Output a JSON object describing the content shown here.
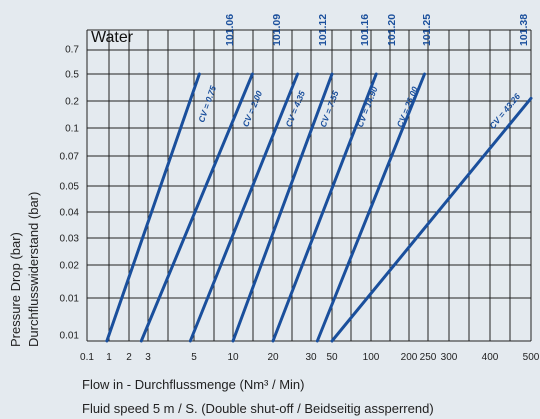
{
  "chart_data": {
    "type": "line",
    "title": "Water",
    "xlabel": "Flow in - Durchflussmenge (Nm³ / Min)",
    "ylabel": "Pressure Drop (bar)",
    "ylabel2": "Durchflusswiderstand (bar)",
    "footnote": "Fluid speed 5 m / S. (Double shut-off / Beidseitig assperrend)",
    "x_scale": "log",
    "y_scale": "log",
    "xlim": [
      0.1,
      500
    ],
    "ylim": [
      0.01,
      0.7
    ],
    "x_ticks": [
      "0.1",
      "1",
      "2",
      "3",
      "5",
      "10",
      "20",
      "30",
      "50",
      "100",
      "200",
      "250",
      "300",
      "400",
      "500"
    ],
    "y_ticks": [
      "0.7",
      "0.5",
      "0.2",
      "0.1",
      "0.07",
      "0.05",
      "0.04",
      "0.03",
      "0.02",
      "0.01",
      "0.01"
    ],
    "grid": true,
    "series": [
      {
        "name": "101.06",
        "label": "CV = 0.75",
        "x": [
          0.8,
          5.5
        ],
        "y": [
          0.01,
          0.5
        ]
      },
      {
        "name": "101.09",
        "label": "CV = 2.00",
        "x": [
          2.6,
          14
        ],
        "y": [
          0.01,
          0.5
        ]
      },
      {
        "name": "101.12",
        "label": "CV = 4.35",
        "x": [
          4.8,
          26
        ],
        "y": [
          0.01,
          0.5
        ]
      },
      {
        "name": "101.16",
        "label": "CV = 7.55",
        "x": [
          10,
          50
        ],
        "y": [
          0.01,
          0.5
        ]
      },
      {
        "name": "101.20",
        "label": "CV = 14.90",
        "x": [
          20,
          110
        ],
        "y": [
          0.01,
          0.5
        ]
      },
      {
        "name": "101.25",
        "label": "CV = 26.00",
        "x": [
          35,
          240
        ],
        "y": [
          0.01,
          0.5
        ]
      },
      {
        "name": "101.38",
        "label": "CV = 43.26",
        "x": [
          50,
          500
        ],
        "y": [
          0.01,
          0.35
        ]
      }
    ],
    "colors": {
      "line": "#1a4f9c",
      "grid": "#222222",
      "background": "#e4eaef"
    }
  }
}
